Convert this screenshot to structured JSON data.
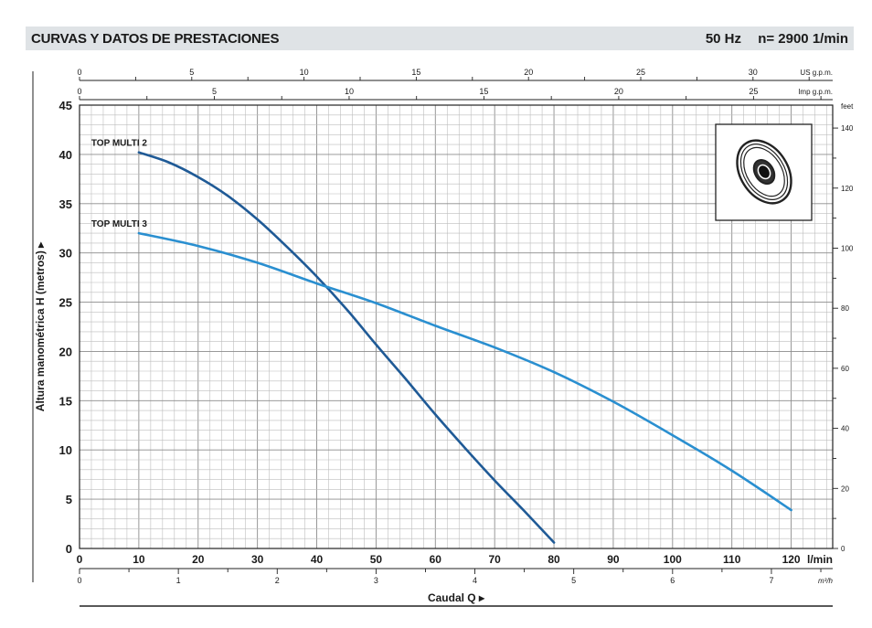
{
  "header": {
    "title": "CURVAS Y DATOS DE PRESTACIONES",
    "frequency": "50 Hz",
    "speed": "n= 2900  1/min"
  },
  "chart_data": {
    "type": "line",
    "xlabel": "Caudal Q",
    "ylabel": "Altura manométrica H (metros)",
    "xlim": [
      0,
      127
    ],
    "ylim": [
      0,
      45
    ],
    "x_ticks": [
      0,
      10,
      20,
      30,
      40,
      50,
      60,
      70,
      80,
      90,
      100,
      110,
      120
    ],
    "x_unit": "l/min",
    "y_ticks": [
      0,
      5,
      10,
      15,
      20,
      25,
      30,
      35,
      40,
      45
    ],
    "grid": true,
    "secondary_axes": {
      "top_us_gpm": {
        "unit": "US g.p.m.",
        "ticks": [
          0,
          5,
          10,
          15,
          20,
          25,
          30
        ]
      },
      "top_imp_gpm": {
        "unit": "Imp g.p.m.",
        "ticks": [
          0,
          5,
          10,
          15,
          20,
          25
        ]
      },
      "bottom_m3h": {
        "unit": "m³/h",
        "ticks": [
          0,
          1,
          2,
          3,
          4,
          5,
          6,
          7
        ]
      },
      "right_feet": {
        "unit": "feet",
        "ticks": [
          0,
          20,
          40,
          60,
          80,
          100,
          120,
          140
        ]
      }
    },
    "series": [
      {
        "name": "TOP MULTI 2",
        "color": "#1f5a96",
        "x": [
          10,
          15,
          20,
          25,
          30,
          35,
          40,
          45,
          50,
          55,
          60,
          65,
          70,
          75,
          80
        ],
        "y": [
          40.2,
          39.2,
          37.7,
          35.8,
          33.4,
          30.6,
          27.6,
          24.3,
          20.7,
          17.2,
          13.6,
          10.2,
          6.9,
          3.8,
          0.6
        ]
      },
      {
        "name": "TOP MULTI 3",
        "color": "#2a8fd0",
        "x": [
          10,
          20,
          30,
          40,
          50,
          60,
          70,
          80,
          90,
          100,
          110,
          120
        ],
        "y": [
          32.0,
          30.7,
          29.0,
          26.9,
          24.9,
          22.6,
          20.4,
          17.9,
          14.9,
          11.5,
          7.9,
          3.9
        ]
      }
    ],
    "labels": {
      "unit_right": "feet",
      "q_arrow": "▸"
    }
  }
}
